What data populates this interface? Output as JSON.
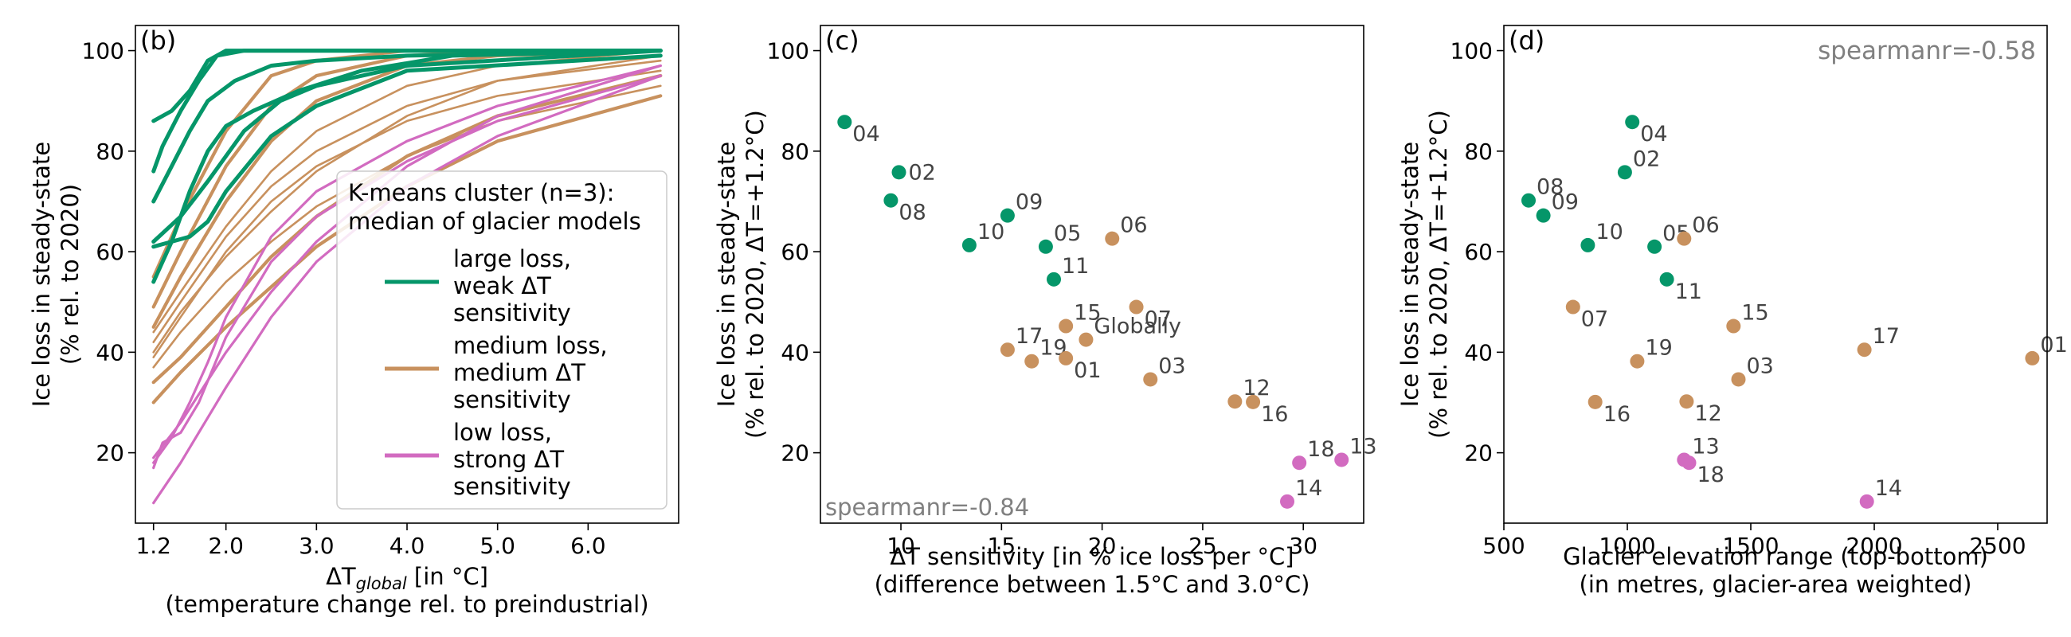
{
  "colors": {
    "cluster_large": "#059669",
    "cluster_medium": "#C8915E",
    "cluster_low": "#D26BC0",
    "annotation_gray": "#808080",
    "label_gray": "#444444"
  },
  "chart_data": [
    {
      "type": "line",
      "panel_label": "(b)",
      "xlabel_main": "ΔT",
      "xlabel_sub": "global",
      "xlabel_rest": " [in °C]",
      "xlabel_line2": "(temperature change rel. to preindustrial)",
      "ylabel_line1": "Ice loss in steady-state",
      "ylabel_line2": "(% rel. to 2020)",
      "xlim": [
        1.0,
        7.0
      ],
      "ylim": [
        6,
        105
      ],
      "xticks": [
        1.2,
        2.0,
        3.0,
        4.0,
        5.0,
        6.0
      ],
      "xtick_labels": [
        "1.2",
        "2.0",
        "3.0",
        "4.0",
        "5.0",
        "6.0"
      ],
      "yticks": [
        20,
        40,
        60,
        80,
        100
      ],
      "ytick_labels": [
        "20",
        "40",
        "60",
        "80",
        "100"
      ],
      "legend": {
        "title_line1": "K-means cluster (n=3):",
        "title_line2": "median of glacier models",
        "entries": [
          {
            "cluster": "large",
            "lines": [
              "large loss,",
              "weak ΔT",
              "sensitivity"
            ]
          },
          {
            "cluster": "medium",
            "lines": [
              "medium loss,",
              "medium ΔT",
              "sensitivity"
            ]
          },
          {
            "cluster": "low",
            "lines": [
              "low loss,",
              "strong ΔT",
              "sensitivity"
            ]
          }
        ]
      },
      "series": [
        {
          "cluster": "large",
          "x": [
            1.2,
            1.4,
            1.6,
            1.8,
            2.0,
            2.5,
            3.0,
            4.0,
            6.8
          ],
          "y": [
            86,
            88,
            92,
            98,
            100,
            100,
            100,
            100,
            100
          ]
        },
        {
          "cluster": "large",
          "x": [
            1.2,
            1.3,
            1.5,
            1.7,
            1.9,
            2.2,
            2.8,
            4.0,
            6.8
          ],
          "y": [
            76,
            81,
            88,
            94,
            99,
            100,
            100,
            100,
            100
          ]
        },
        {
          "cluster": "large",
          "x": [
            1.2,
            1.4,
            1.6,
            1.8,
            2.1,
            2.5,
            3.0,
            4.0,
            6.8
          ],
          "y": [
            70,
            77,
            84,
            90,
            94,
            97,
            98,
            99,
            100
          ]
        },
        {
          "cluster": "large",
          "x": [
            1.2,
            1.5,
            1.8,
            2.2,
            2.6,
            3.0,
            4.0,
            6.8
          ],
          "y": [
            62,
            67,
            74,
            84,
            90,
            93,
            97,
            100
          ]
        },
        {
          "cluster": "large",
          "x": [
            1.2,
            1.4,
            1.6,
            1.8,
            2.0,
            2.5,
            3.0,
            4.0,
            6.8
          ],
          "y": [
            61,
            62,
            63,
            66,
            72,
            83,
            89,
            96,
            99
          ]
        },
        {
          "cluster": "large",
          "x": [
            1.2,
            1.4,
            1.6,
            1.8,
            2.0,
            2.3,
            2.8,
            3.5,
            4.5,
            6.8
          ],
          "y": [
            54,
            62,
            72,
            80,
            85,
            88,
            92,
            96,
            99,
            100
          ]
        },
        {
          "cluster": "medium",
          "x": [
            1.2,
            1.5,
            2.0,
            2.5,
            3.0,
            4.0,
            5.0,
            6.8
          ],
          "y": [
            55,
            67,
            84,
            95,
            98,
            100,
            100,
            100
          ]
        },
        {
          "cluster": "medium",
          "x": [
            1.2,
            1.5,
            2.0,
            2.5,
            3.0,
            4.0,
            5.0,
            6.8
          ],
          "y": [
            49,
            60,
            77,
            89,
            95,
            99,
            100,
            100
          ]
        },
        {
          "cluster": "medium",
          "x": [
            1.2,
            1.5,
            2.0,
            2.5,
            3.0,
            4.0,
            5.0,
            6.8
          ],
          "y": [
            45,
            55,
            70,
            82,
            90,
            97,
            99,
            100
          ]
        },
        {
          "cluster": "medium",
          "x": [
            1.2,
            1.5,
            2.0,
            2.5,
            3.0,
            4.0,
            5.0,
            6.8
          ],
          "y": [
            42,
            50,
            63,
            73,
            80,
            89,
            94,
            98
          ]
        },
        {
          "cluster": "medium",
          "x": [
            1.2,
            1.5,
            2.0,
            2.5,
            3.0,
            4.0,
            5.0,
            6.8
          ],
          "y": [
            39,
            47,
            60,
            70,
            77,
            86,
            91,
            96
          ]
        },
        {
          "cluster": "medium",
          "x": [
            1.2,
            1.5,
            2.0,
            2.5,
            3.0,
            4.0,
            5.0,
            6.8
          ],
          "y": [
            37,
            44,
            54,
            62,
            69,
            79,
            86,
            93
          ]
        },
        {
          "cluster": "medium",
          "x": [
            1.2,
            1.5,
            2.0,
            2.5,
            3.0,
            4.0,
            5.0,
            6.8
          ],
          "y": [
            34,
            39,
            49,
            59,
            67,
            79,
            87,
            95
          ]
        },
        {
          "cluster": "medium",
          "x": [
            1.2,
            1.5,
            2.0,
            2.5,
            3.0,
            4.0,
            5.0,
            6.8
          ],
          "y": [
            30,
            36,
            45,
            53,
            61,
            73,
            82,
            91
          ]
        },
        {
          "cluster": "medium",
          "x": [
            1.2,
            1.5,
            2.0,
            2.5,
            3.0,
            4.0,
            5.0,
            6.8
          ],
          "y": [
            40,
            48,
            59,
            68,
            76,
            87,
            94,
            99
          ]
        },
        {
          "cluster": "medium",
          "x": [
            1.2,
            1.5,
            2.0,
            2.5,
            3.0,
            4.0,
            5.0,
            6.8
          ],
          "y": [
            44,
            52,
            65,
            76,
            84,
            93,
            97,
            100
          ]
        },
        {
          "cluster": "low",
          "x": [
            1.2,
            1.4,
            1.6,
            1.8,
            2.0,
            2.5,
            3.0,
            4.0,
            5.0,
            6.8
          ],
          "y": [
            18,
            23,
            30,
            38,
            47,
            63,
            72,
            82,
            89,
            97
          ]
        },
        {
          "cluster": "low",
          "x": [
            1.2,
            1.3,
            1.5,
            1.7,
            2.0,
            2.5,
            3.0,
            4.0,
            5.0,
            6.8
          ],
          "y": [
            17,
            22,
            24,
            30,
            43,
            58,
            67,
            78,
            86,
            95
          ]
        },
        {
          "cluster": "low",
          "x": [
            1.2,
            1.5,
            2.0,
            2.5,
            3.0,
            4.0,
            5.0,
            6.8
          ],
          "y": [
            10,
            18,
            33,
            47,
            58,
            73,
            83,
            95
          ]
        },
        {
          "cluster": "low",
          "x": [
            1.2,
            1.5,
            2.0,
            2.5,
            3.0,
            4.0,
            5.0,
            6.8
          ],
          "y": [
            19,
            26,
            40,
            52,
            62,
            77,
            87,
            97
          ]
        }
      ]
    },
    {
      "type": "scatter",
      "panel_label": "(c)",
      "annotation": "spearmanr=-0.84",
      "annotation_position": "bottom-left",
      "xlabel_line1": "ΔT sensitivity [in % ice loss per °C]",
      "xlabel_line2": "(difference between 1.5°C and 3.0°C)",
      "ylabel_line1": "Ice loss in steady-state",
      "ylabel_line2": "(% rel. to 2020, ΔT=+1.2°C)",
      "xlim": [
        6,
        33
      ],
      "ylim": [
        6,
        105
      ],
      "xticks": [
        10,
        15,
        20,
        25,
        30
      ],
      "xtick_labels": [
        "10",
        "15",
        "20",
        "25",
        "30"
      ],
      "yticks": [
        20,
        40,
        60,
        80,
        100
      ],
      "ytick_labels": [
        "20",
        "40",
        "60",
        "80",
        100
      ],
      "points": [
        {
          "label": "04",
          "x": 7.2,
          "y": 85.8,
          "cluster": "large",
          "label_pos": "below-right"
        },
        {
          "label": "02",
          "x": 9.9,
          "y": 75.8,
          "cluster": "large",
          "label_pos": "right"
        },
        {
          "label": "08",
          "x": 9.5,
          "y": 70.2,
          "cluster": "large",
          "label_pos": "below-right"
        },
        {
          "label": "09",
          "x": 15.3,
          "y": 67.2,
          "cluster": "large",
          "label_pos": "above-right"
        },
        {
          "label": "10",
          "x": 13.4,
          "y": 61.3,
          "cluster": "large",
          "label_pos": "above-right"
        },
        {
          "label": "05",
          "x": 17.2,
          "y": 61.0,
          "cluster": "large",
          "label_pos": "above-right"
        },
        {
          "label": "11",
          "x": 17.6,
          "y": 54.5,
          "cluster": "large",
          "label_pos": "above-right"
        },
        {
          "label": "06",
          "x": 20.5,
          "y": 62.6,
          "cluster": "medium",
          "label_pos": "above-right"
        },
        {
          "label": "07",
          "x": 21.7,
          "y": 49.0,
          "cluster": "medium",
          "label_pos": "below-right"
        },
        {
          "label": "15",
          "x": 18.2,
          "y": 45.2,
          "cluster": "medium",
          "label_pos": "above-right"
        },
        {
          "label": "Globally",
          "x": 19.2,
          "y": 42.5,
          "cluster": "medium",
          "label_pos": "above-right"
        },
        {
          "label": "17",
          "x": 15.3,
          "y": 40.5,
          "cluster": "medium",
          "label_pos": "above-right"
        },
        {
          "label": "19",
          "x": 16.5,
          "y": 38.2,
          "cluster": "medium",
          "label_pos": "above-right"
        },
        {
          "label": "01",
          "x": 18.2,
          "y": 38.8,
          "cluster": "medium",
          "label_pos": "below-right"
        },
        {
          "label": "03",
          "x": 22.4,
          "y": 34.6,
          "cluster": "medium",
          "label_pos": "above-right"
        },
        {
          "label": "12",
          "x": 26.6,
          "y": 30.2,
          "cluster": "medium",
          "label_pos": "above-right"
        },
        {
          "label": "16",
          "x": 27.5,
          "y": 30.1,
          "cluster": "medium",
          "label_pos": "below-right"
        },
        {
          "label": "18",
          "x": 29.8,
          "y": 18.0,
          "cluster": "low",
          "label_pos": "above-right"
        },
        {
          "label": "13",
          "x": 31.9,
          "y": 18.6,
          "cluster": "low",
          "label_pos": "above-right"
        },
        {
          "label": "14",
          "x": 29.2,
          "y": 10.3,
          "cluster": "low",
          "label_pos": "above-right"
        }
      ]
    },
    {
      "type": "scatter",
      "panel_label": "(d)",
      "annotation": "spearmanr=-0.58",
      "annotation_position": "top-right",
      "xlabel_line1": "Glacier elevation range (top-bottom)",
      "xlabel_line2": "(in metres, glacier-area weighted)",
      "ylabel_line1": "Ice loss in steady-state",
      "ylabel_line2": "(% rel. to 2020, ΔT=+1.2°C)",
      "xlim": [
        500,
        2700
      ],
      "ylim": [
        6,
        105
      ],
      "xticks": [
        500,
        1000,
        1500,
        2000,
        2500
      ],
      "xtick_labels": [
        "500",
        "1000",
        "1500",
        "2000",
        "2500"
      ],
      "yticks": [
        20,
        40,
        60,
        80,
        100
      ],
      "ytick_labels": [
        "20",
        "40",
        "60",
        "80",
        "100"
      ],
      "points": [
        {
          "label": "04",
          "x": 1020,
          "y": 85.8,
          "cluster": "large",
          "label_pos": "below-right"
        },
        {
          "label": "02",
          "x": 990,
          "y": 75.8,
          "cluster": "large",
          "label_pos": "above-right"
        },
        {
          "label": "08",
          "x": 600,
          "y": 70.2,
          "cluster": "large",
          "label_pos": "above-right"
        },
        {
          "label": "09",
          "x": 660,
          "y": 67.2,
          "cluster": "large",
          "label_pos": "above-right"
        },
        {
          "label": "10",
          "x": 840,
          "y": 61.3,
          "cluster": "large",
          "label_pos": "above-right"
        },
        {
          "label": "05",
          "x": 1110,
          "y": 61.0,
          "cluster": "large",
          "label_pos": "above-right"
        },
        {
          "label": "11",
          "x": 1160,
          "y": 54.5,
          "cluster": "large",
          "label_pos": "below-right"
        },
        {
          "label": "06",
          "x": 1230,
          "y": 62.6,
          "cluster": "medium",
          "label_pos": "above-right"
        },
        {
          "label": "07",
          "x": 780,
          "y": 49.0,
          "cluster": "medium",
          "label_pos": "below-right"
        },
        {
          "label": "15",
          "x": 1430,
          "y": 45.2,
          "cluster": "medium",
          "label_pos": "above-right"
        },
        {
          "label": "17",
          "x": 1960,
          "y": 40.5,
          "cluster": "medium",
          "label_pos": "above-right"
        },
        {
          "label": "01",
          "x": 2640,
          "y": 38.8,
          "cluster": "medium",
          "label_pos": "above-right"
        },
        {
          "label": "19",
          "x": 1040,
          "y": 38.2,
          "cluster": "medium",
          "label_pos": "above-right"
        },
        {
          "label": "03",
          "x": 1450,
          "y": 34.6,
          "cluster": "medium",
          "label_pos": "above-right"
        },
        {
          "label": "16",
          "x": 870,
          "y": 30.1,
          "cluster": "medium",
          "label_pos": "below-right"
        },
        {
          "label": "12",
          "x": 1240,
          "y": 30.2,
          "cluster": "medium",
          "label_pos": "below-right"
        },
        {
          "label": "13",
          "x": 1230,
          "y": 18.6,
          "cluster": "low",
          "label_pos": "above-right"
        },
        {
          "label": "18",
          "x": 1250,
          "y": 18.0,
          "cluster": "low",
          "label_pos": "below-right"
        },
        {
          "label": "14",
          "x": 1970,
          "y": 10.3,
          "cluster": "low",
          "label_pos": "above-right"
        }
      ]
    }
  ]
}
